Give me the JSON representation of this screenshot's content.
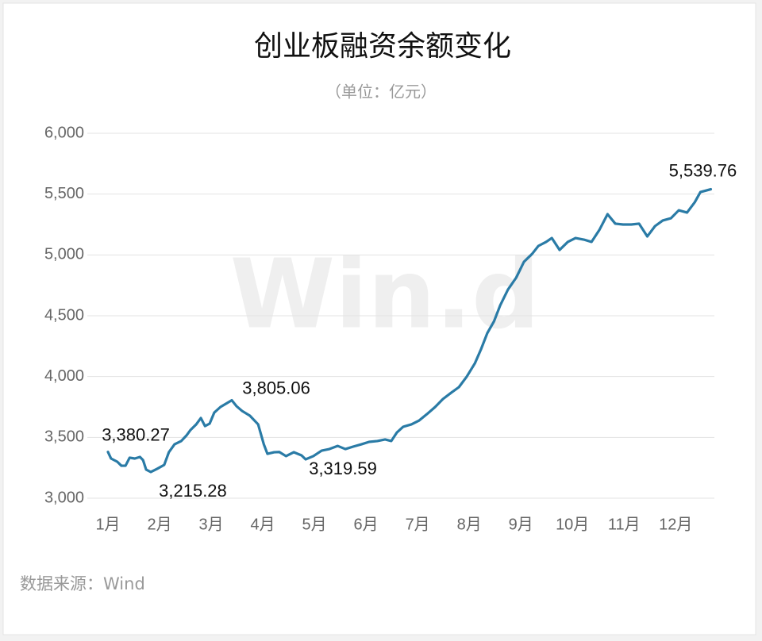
{
  "chart_data": {
    "type": "line",
    "title": "创业板融资余额变化",
    "subtitle": "（单位：亿元）",
    "source": "数据来源：Wind",
    "watermark": "Win.d",
    "color": "#2a7ba6",
    "grid": true,
    "xlim": [
      0.6,
      12.75
    ],
    "xticks": [
      {
        "value": 1,
        "label": "1月"
      },
      {
        "value": 2,
        "label": "2月"
      },
      {
        "value": 3,
        "label": "3月"
      },
      {
        "value": 4,
        "label": "4月"
      },
      {
        "value": 5,
        "label": "5月"
      },
      {
        "value": 6,
        "label": "6月"
      },
      {
        "value": 7,
        "label": "7月"
      },
      {
        "value": 8,
        "label": "8月"
      },
      {
        "value": 9,
        "label": "9月"
      },
      {
        "value": 10,
        "label": "10月"
      },
      {
        "value": 11,
        "label": "11月"
      },
      {
        "value": 12,
        "label": "12月"
      }
    ],
    "ylim": [
      3000,
      6000
    ],
    "yticks": [
      {
        "value": 3000,
        "label": "3,000"
      },
      {
        "value": 3500,
        "label": "3,500"
      },
      {
        "value": 4000,
        "label": "4,000"
      },
      {
        "value": 4500,
        "label": "4,500"
      },
      {
        "value": 5000,
        "label": "5,000"
      },
      {
        "value": 5500,
        "label": "5,500"
      },
      {
        "value": 6000,
        "label": "6,000"
      }
    ],
    "x": [
      1.0,
      1.06,
      1.18,
      1.26,
      1.34,
      1.42,
      1.52,
      1.62,
      1.68,
      1.74,
      1.83,
      1.95,
      2.09,
      2.18,
      2.29,
      2.42,
      2.52,
      2.6,
      2.71,
      2.8,
      2.88,
      2.97,
      3.06,
      3.18,
      3.31,
      3.4,
      3.49,
      3.6,
      3.75,
      3.91,
      4.02,
      4.09,
      4.22,
      4.32,
      4.45,
      4.6,
      4.75,
      4.83,
      4.98,
      5.14,
      5.29,
      5.45,
      5.6,
      5.75,
      5.91,
      6.06,
      6.22,
      6.37,
      6.49,
      6.6,
      6.72,
      6.88,
      7.03,
      7.18,
      7.34,
      7.49,
      7.65,
      7.8,
      7.95,
      8.11,
      8.23,
      8.35,
      8.48,
      8.6,
      8.75,
      8.91,
      9.06,
      9.22,
      9.34,
      9.49,
      9.6,
      9.75,
      9.91,
      10.06,
      10.22,
      10.37,
      10.52,
      10.68,
      10.83,
      10.98,
      11.14,
      11.29,
      11.45,
      11.6,
      11.75,
      11.91,
      12.06,
      12.22,
      12.37,
      12.48,
      12.68
    ],
    "values": [
      3380.27,
      3326,
      3300,
      3267,
      3267,
      3333,
      3326,
      3339,
      3313,
      3235,
      3215.28,
      3241,
      3274,
      3378,
      3443,
      3470,
      3515,
      3561,
      3607,
      3659,
      3593,
      3613,
      3704,
      3750,
      3783,
      3805.06,
      3757,
      3717,
      3678,
      3607,
      3443,
      3365,
      3378,
      3380,
      3346,
      3378,
      3352,
      3319.59,
      3346,
      3391,
      3404,
      3430,
      3404,
      3424,
      3443,
      3463,
      3470,
      3483,
      3470,
      3541,
      3587,
      3607,
      3639,
      3691,
      3750,
      3815,
      3867,
      3913,
      3998,
      4109,
      4226,
      4357,
      4454,
      4585,
      4715,
      4813,
      4943,
      5009,
      5074,
      5107,
      5139,
      5041,
      5107,
      5139,
      5126,
      5107,
      5204,
      5335,
      5257,
      5250,
      5250,
      5257,
      5152,
      5237,
      5283,
      5302,
      5367,
      5348,
      5433,
      5517,
      5539.76
    ],
    "value_labels": [
      "3,380.27",
      null,
      null,
      null,
      null,
      null,
      null,
      null,
      null,
      null,
      "3,215.28",
      null,
      null,
      null,
      null,
      null,
      null,
      null,
      null,
      null,
      null,
      null,
      null,
      null,
      null,
      "3,805.06",
      null,
      null,
      null,
      null,
      null,
      null,
      null,
      null,
      null,
      null,
      null,
      "3,319.59",
      null,
      null,
      null,
      null,
      null,
      null,
      null,
      null,
      null,
      null,
      null,
      null,
      null,
      null,
      null,
      null,
      null,
      null,
      null,
      null,
      null,
      null,
      null,
      null,
      null,
      null,
      null,
      null,
      null,
      null,
      null,
      null,
      null,
      null,
      null,
      null,
      null,
      null,
      null,
      null,
      null,
      null,
      null,
      null,
      null,
      null,
      null,
      null,
      null,
      null,
      null,
      null,
      "5,539.76"
    ]
  }
}
